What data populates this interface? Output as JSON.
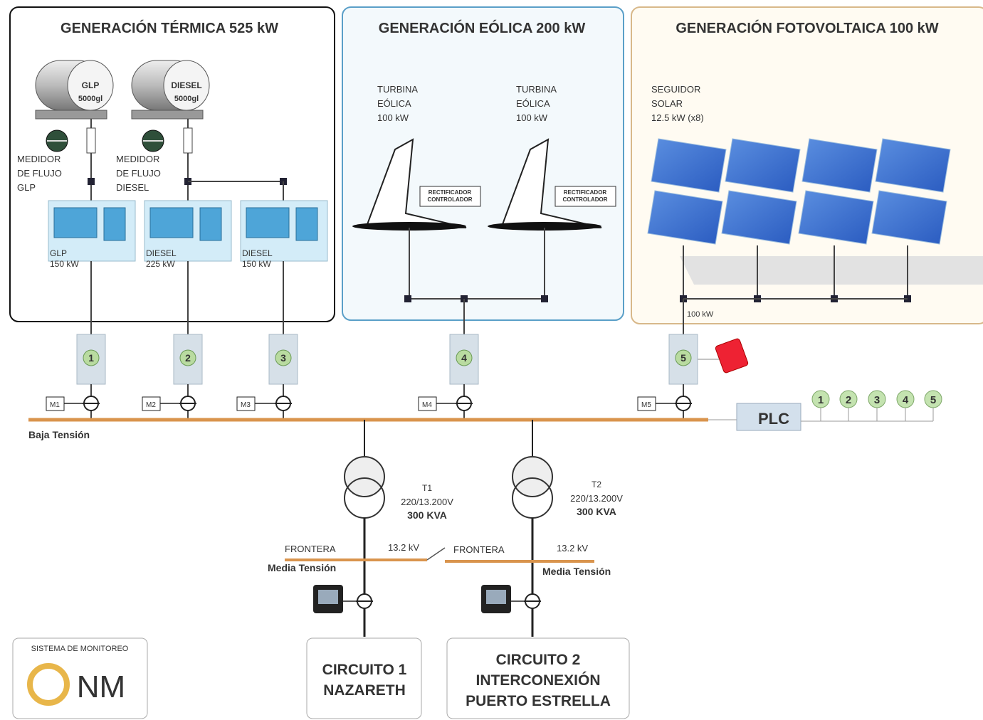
{
  "sections": [
    {
      "title": "GENERACIÓN TÉRMICA 525 kW"
    },
    {
      "title": "GENERACIÓN EÓLICA 200 kW"
    },
    {
      "title": "GENERACIÓN FOTOVOLTAICA 100 kW"
    }
  ],
  "tanks": [
    {
      "fuel": "GLP",
      "capacity": "5000gl"
    },
    {
      "fuel": "DIESEL",
      "capacity": "5000gl"
    }
  ],
  "flow_meters": [
    {
      "lines": [
        "MEDIDOR",
        "DE FLUJO",
        "GLP"
      ]
    },
    {
      "lines": [
        "MEDIDOR",
        "DE FLUJO",
        "DIESEL"
      ]
    }
  ],
  "generators": [
    {
      "lines": [
        "GLP",
        "150 kW"
      ]
    },
    {
      "lines": [
        "DIESEL",
        "225 kW"
      ]
    },
    {
      "lines": [
        "DIESEL",
        "150 kW"
      ]
    }
  ],
  "turbines": [
    {
      "lines": [
        "TURBINA",
        "EÓLICA",
        "100 kW"
      ],
      "controller": [
        "RECTIFICADOR",
        "CONTROLADOR"
      ]
    },
    {
      "lines": [
        "TURBINA",
        "EÓLICA",
        "100 kW"
      ],
      "controller": [
        "RECTIFICADOR",
        "CONTROLADOR"
      ]
    }
  ],
  "solar": {
    "lines": [
      "SEGUIDOR",
      "SOLAR",
      "12.5 kW (x8)"
    ],
    "output": "100 kW"
  },
  "breakers": [
    "1",
    "2",
    "3",
    "4",
    "5"
  ],
  "meters": [
    "M1",
    "M2",
    "M3",
    "M4",
    "M5"
  ],
  "low_voltage_label": "Baja Tensión",
  "plc": {
    "label": "PLC",
    "inputs": [
      "1",
      "2",
      "3",
      "4",
      "5"
    ]
  },
  "transformers": [
    {
      "name": "T1",
      "ratio": "220/13.200V",
      "rating": "300 KVA"
    },
    {
      "name": "T2",
      "ratio": "220/13.200V",
      "rating": "300 KVA"
    }
  ],
  "frontiers": [
    {
      "label": "FRONTERA",
      "voltage": "13.2 kV",
      "bus": "Media Tensión"
    },
    {
      "label": "FRONTERA",
      "voltage": "13.2 kV",
      "bus": "Media Tensión"
    }
  ],
  "circuits": [
    {
      "lines": [
        "CIRCUITO 1",
        "NAZARETH"
      ]
    },
    {
      "lines": [
        "CIRCUITO 2",
        "INTERCONEXIÓN",
        "PUERTO ESTRELLA"
      ]
    }
  ],
  "monitoring": {
    "title": "SISTEMA DE MONITOREO",
    "logo": "NM"
  }
}
